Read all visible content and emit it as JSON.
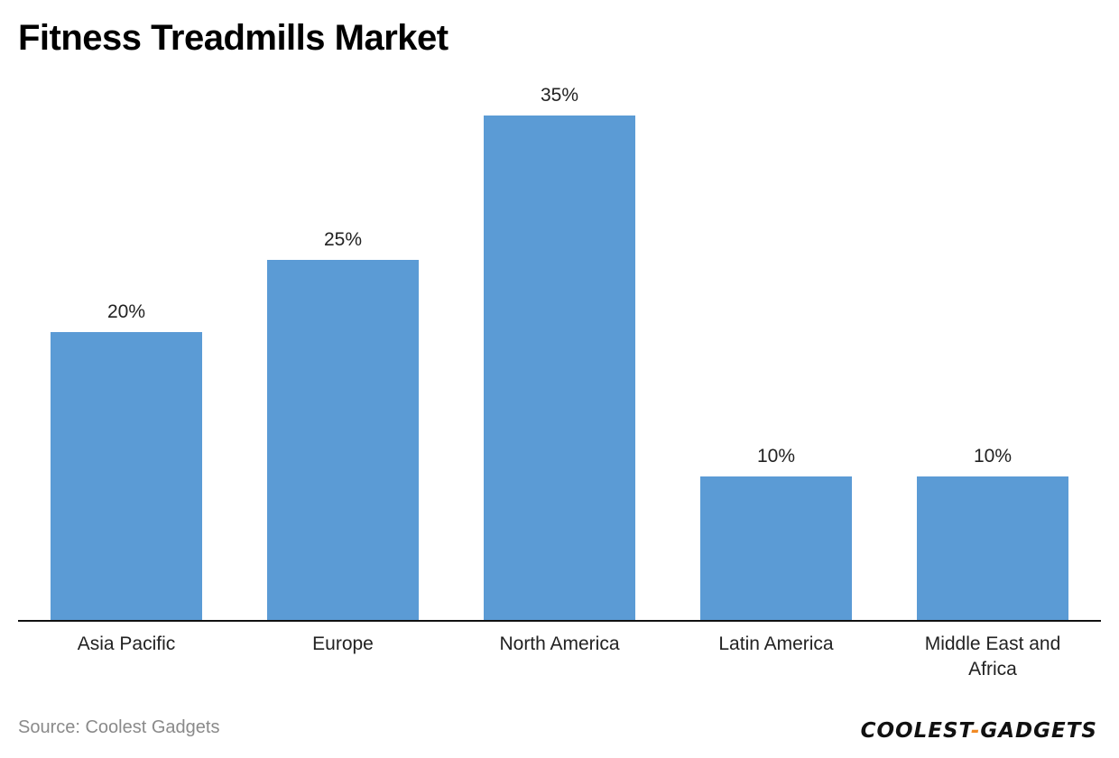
{
  "title": "Fitness Treadmills Market",
  "source": "Source: Coolest Gadgets",
  "logo": {
    "part1": "COOLEST",
    "dash": "-",
    "part2": "GADGETS"
  },
  "colors": {
    "bar": "#5b9bd5",
    "axis": "#111111",
    "accent": "#f08a24"
  },
  "chart_data": {
    "type": "bar",
    "title": "Fitness Treadmills Market",
    "categories": [
      "Asia Pacific",
      "Europe",
      "North America",
      "Latin America",
      "Middle East and Africa"
    ],
    "category_lines": [
      [
        "Asia Pacific"
      ],
      [
        "Europe"
      ],
      [
        "North America"
      ],
      [
        "Latin America"
      ],
      [
        "Middle East and",
        "Africa"
      ]
    ],
    "values": [
      20,
      25,
      35,
      10,
      10
    ],
    "data_labels": [
      "20%",
      "25%",
      "35%",
      "10%",
      "10%"
    ],
    "unit": "%",
    "ylim": [
      0,
      35
    ],
    "grid": false,
    "legend": "none"
  }
}
